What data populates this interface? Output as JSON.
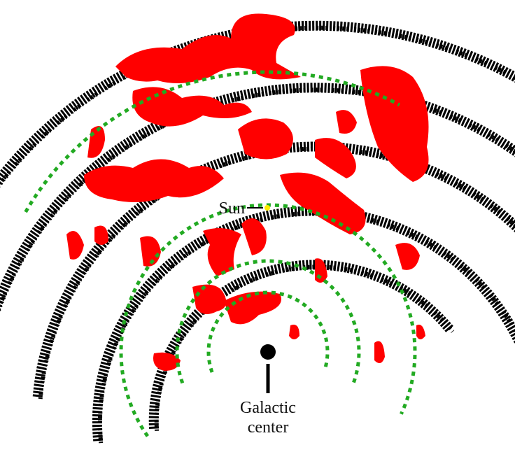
{
  "labels": {
    "sun": "Sun",
    "center": [
      "Galactic",
      "center"
    ]
  }
}
